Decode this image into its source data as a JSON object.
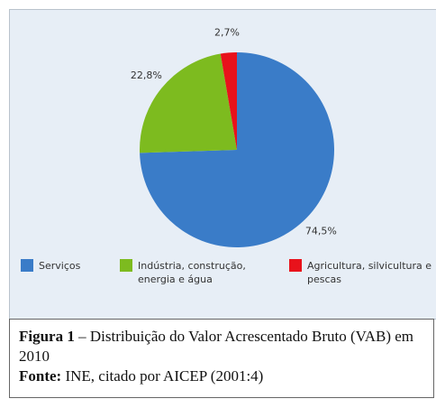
{
  "chart_data": {
    "type": "pie",
    "categories": [
      "Serviços",
      "Indústria, construção, energia e água",
      "Agricultura, silvicultura e pescas"
    ],
    "values": [
      74.5,
      22.8,
      2.7
    ],
    "value_labels": [
      "74,5%",
      "22,8%",
      "2,7%"
    ],
    "colors": [
      "#3a7cc8",
      "#7dbb1f",
      "#e8121b"
    ]
  },
  "caption": {
    "figure_label": "Figura 1",
    "figure_text": "– Distribuição do Valor Acrescentado Bruto (VAB) em 2010",
    "source_label": "Fonte:",
    "source_text": "INE, citado por AICEP (2001:4)"
  }
}
